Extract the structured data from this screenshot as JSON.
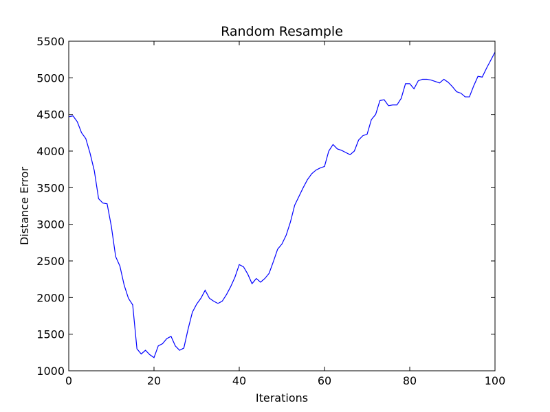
{
  "chart_data": {
    "type": "line",
    "title": "Random Resample",
    "xlabel": "Iterations",
    "ylabel": "Distance Error",
    "xlim": [
      0,
      100
    ],
    "ylim": [
      1000,
      5500
    ],
    "xticks": [
      0,
      20,
      40,
      60,
      80,
      100
    ],
    "yticks": [
      1000,
      1500,
      2000,
      2500,
      3000,
      3500,
      4000,
      4500,
      5000,
      5500
    ],
    "grid": false,
    "line_color": "#0000ff",
    "series": [
      {
        "x": [
          0,
          1,
          2,
          3,
          4,
          5,
          6,
          7,
          8,
          9,
          10,
          11,
          12,
          13,
          14,
          15,
          16,
          17,
          18,
          19,
          20,
          21,
          22,
          23,
          24,
          25,
          26,
          27,
          28,
          29,
          30,
          31,
          32,
          33,
          34,
          35,
          36,
          37,
          38,
          39,
          40,
          41,
          42,
          43,
          44,
          45,
          46,
          47,
          48,
          49,
          50,
          51,
          52,
          53,
          54,
          55,
          56,
          57,
          58,
          59,
          60,
          61,
          62,
          63,
          64,
          65,
          66,
          67,
          68,
          69,
          70,
          71,
          72,
          73,
          74,
          75,
          76,
          77,
          78,
          79,
          80,
          81,
          82,
          83,
          84,
          85,
          86,
          87,
          88,
          89,
          90,
          91,
          92,
          93,
          94,
          95,
          96,
          97,
          98,
          99,
          100
        ],
        "values": [
          4470,
          4480,
          4400,
          4250,
          4170,
          3970,
          3730,
          3350,
          3290,
          3280,
          2970,
          2560,
          2430,
          2170,
          1990,
          1900,
          1300,
          1230,
          1280,
          1220,
          1180,
          1340,
          1370,
          1440,
          1470,
          1340,
          1280,
          1310,
          1570,
          1800,
          1910,
          1990,
          2100,
          1990,
          1950,
          1920,
          1950,
          2040,
          2150,
          2280,
          2450,
          2420,
          2320,
          2190,
          2260,
          2210,
          2260,
          2330,
          2490,
          2660,
          2730,
          2850,
          3030,
          3260,
          3380,
          3500,
          3610,
          3690,
          3740,
          3770,
          3790,
          4000,
          4090,
          4030,
          4010,
          3980,
          3950,
          4000,
          4150,
          4210,
          4230,
          4430,
          4500,
          4690,
          4700,
          4620,
          4630,
          4630,
          4720,
          4920,
          4920,
          4850,
          4960,
          4980,
          4980,
          4970,
          4950,
          4930,
          4980,
          4940,
          4880,
          4810,
          4790,
          4740,
          4740,
          4890,
          5020,
          5010,
          5130,
          5240,
          5350
        ]
      }
    ]
  }
}
